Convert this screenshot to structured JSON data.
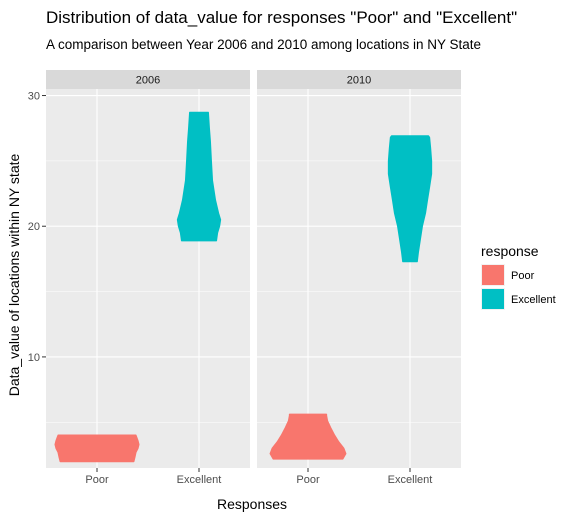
{
  "chart_data": {
    "type": "violin",
    "title": "Distribution of data_value for responses \"Poor\" and \"Excellent\"",
    "subtitle": "A comparison between Year 2006 and 2010 among locations in NY State",
    "xlabel": "Responses",
    "ylabel": "Data_value of locations within NY state",
    "categories": [
      "Poor",
      "Excellent"
    ],
    "y_ticks": [
      10,
      20,
      30
    ],
    "ylim": [
      1.5,
      30.5
    ],
    "grid": true,
    "legend": {
      "title": "response",
      "position": "right",
      "entries": [
        {
          "label": "Poor",
          "color": "#F8766D"
        },
        {
          "label": "Excellent",
          "color": "#00BFC4"
        }
      ]
    },
    "panels": [
      {
        "label": "2006",
        "violins": [
          {
            "category": "Poor",
            "color": "#F8766D",
            "profile": [
              [
                2.0,
                0.72
              ],
              [
                2.3,
                0.74
              ],
              [
                2.7,
                0.76
              ],
              [
                3.0,
                0.8
              ],
              [
                3.3,
                0.82
              ],
              [
                3.6,
                0.8
              ],
              [
                3.8,
                0.78
              ],
              [
                4.0,
                0.76
              ]
            ]
          },
          {
            "category": "Excellent",
            "color": "#00BFC4",
            "profile": [
              [
                18.9,
                0.34
              ],
              [
                19.5,
                0.36
              ],
              [
                20.0,
                0.4
              ],
              [
                20.5,
                0.42
              ],
              [
                21.0,
                0.38
              ],
              [
                22.0,
                0.32
              ],
              [
                23.5,
                0.26
              ],
              [
                25.0,
                0.24
              ],
              [
                26.5,
                0.22
              ],
              [
                27.5,
                0.2
              ],
              [
                28.7,
                0.18
              ]
            ]
          }
        ]
      },
      {
        "label": "2010",
        "violins": [
          {
            "category": "Poor",
            "color": "#F8766D",
            "profile": [
              [
                2.2,
                0.68
              ],
              [
                2.6,
                0.74
              ],
              [
                3.0,
                0.7
              ],
              [
                3.5,
                0.6
              ],
              [
                4.0,
                0.52
              ],
              [
                4.6,
                0.44
              ],
              [
                5.1,
                0.38
              ],
              [
                5.5,
                0.36
              ],
              [
                5.6,
                0.36
              ]
            ]
          },
          {
            "category": "Excellent",
            "color": "#00BFC4",
            "profile": [
              [
                17.3,
                0.14
              ],
              [
                18.0,
                0.16
              ],
              [
                19.0,
                0.2
              ],
              [
                20.0,
                0.24
              ],
              [
                21.0,
                0.3
              ],
              [
                22.0,
                0.34
              ],
              [
                23.0,
                0.38
              ],
              [
                24.0,
                0.42
              ],
              [
                25.0,
                0.42
              ],
              [
                26.0,
                0.4
              ],
              [
                26.8,
                0.38
              ],
              [
                26.9,
                0.36
              ]
            ]
          }
        ]
      }
    ]
  }
}
